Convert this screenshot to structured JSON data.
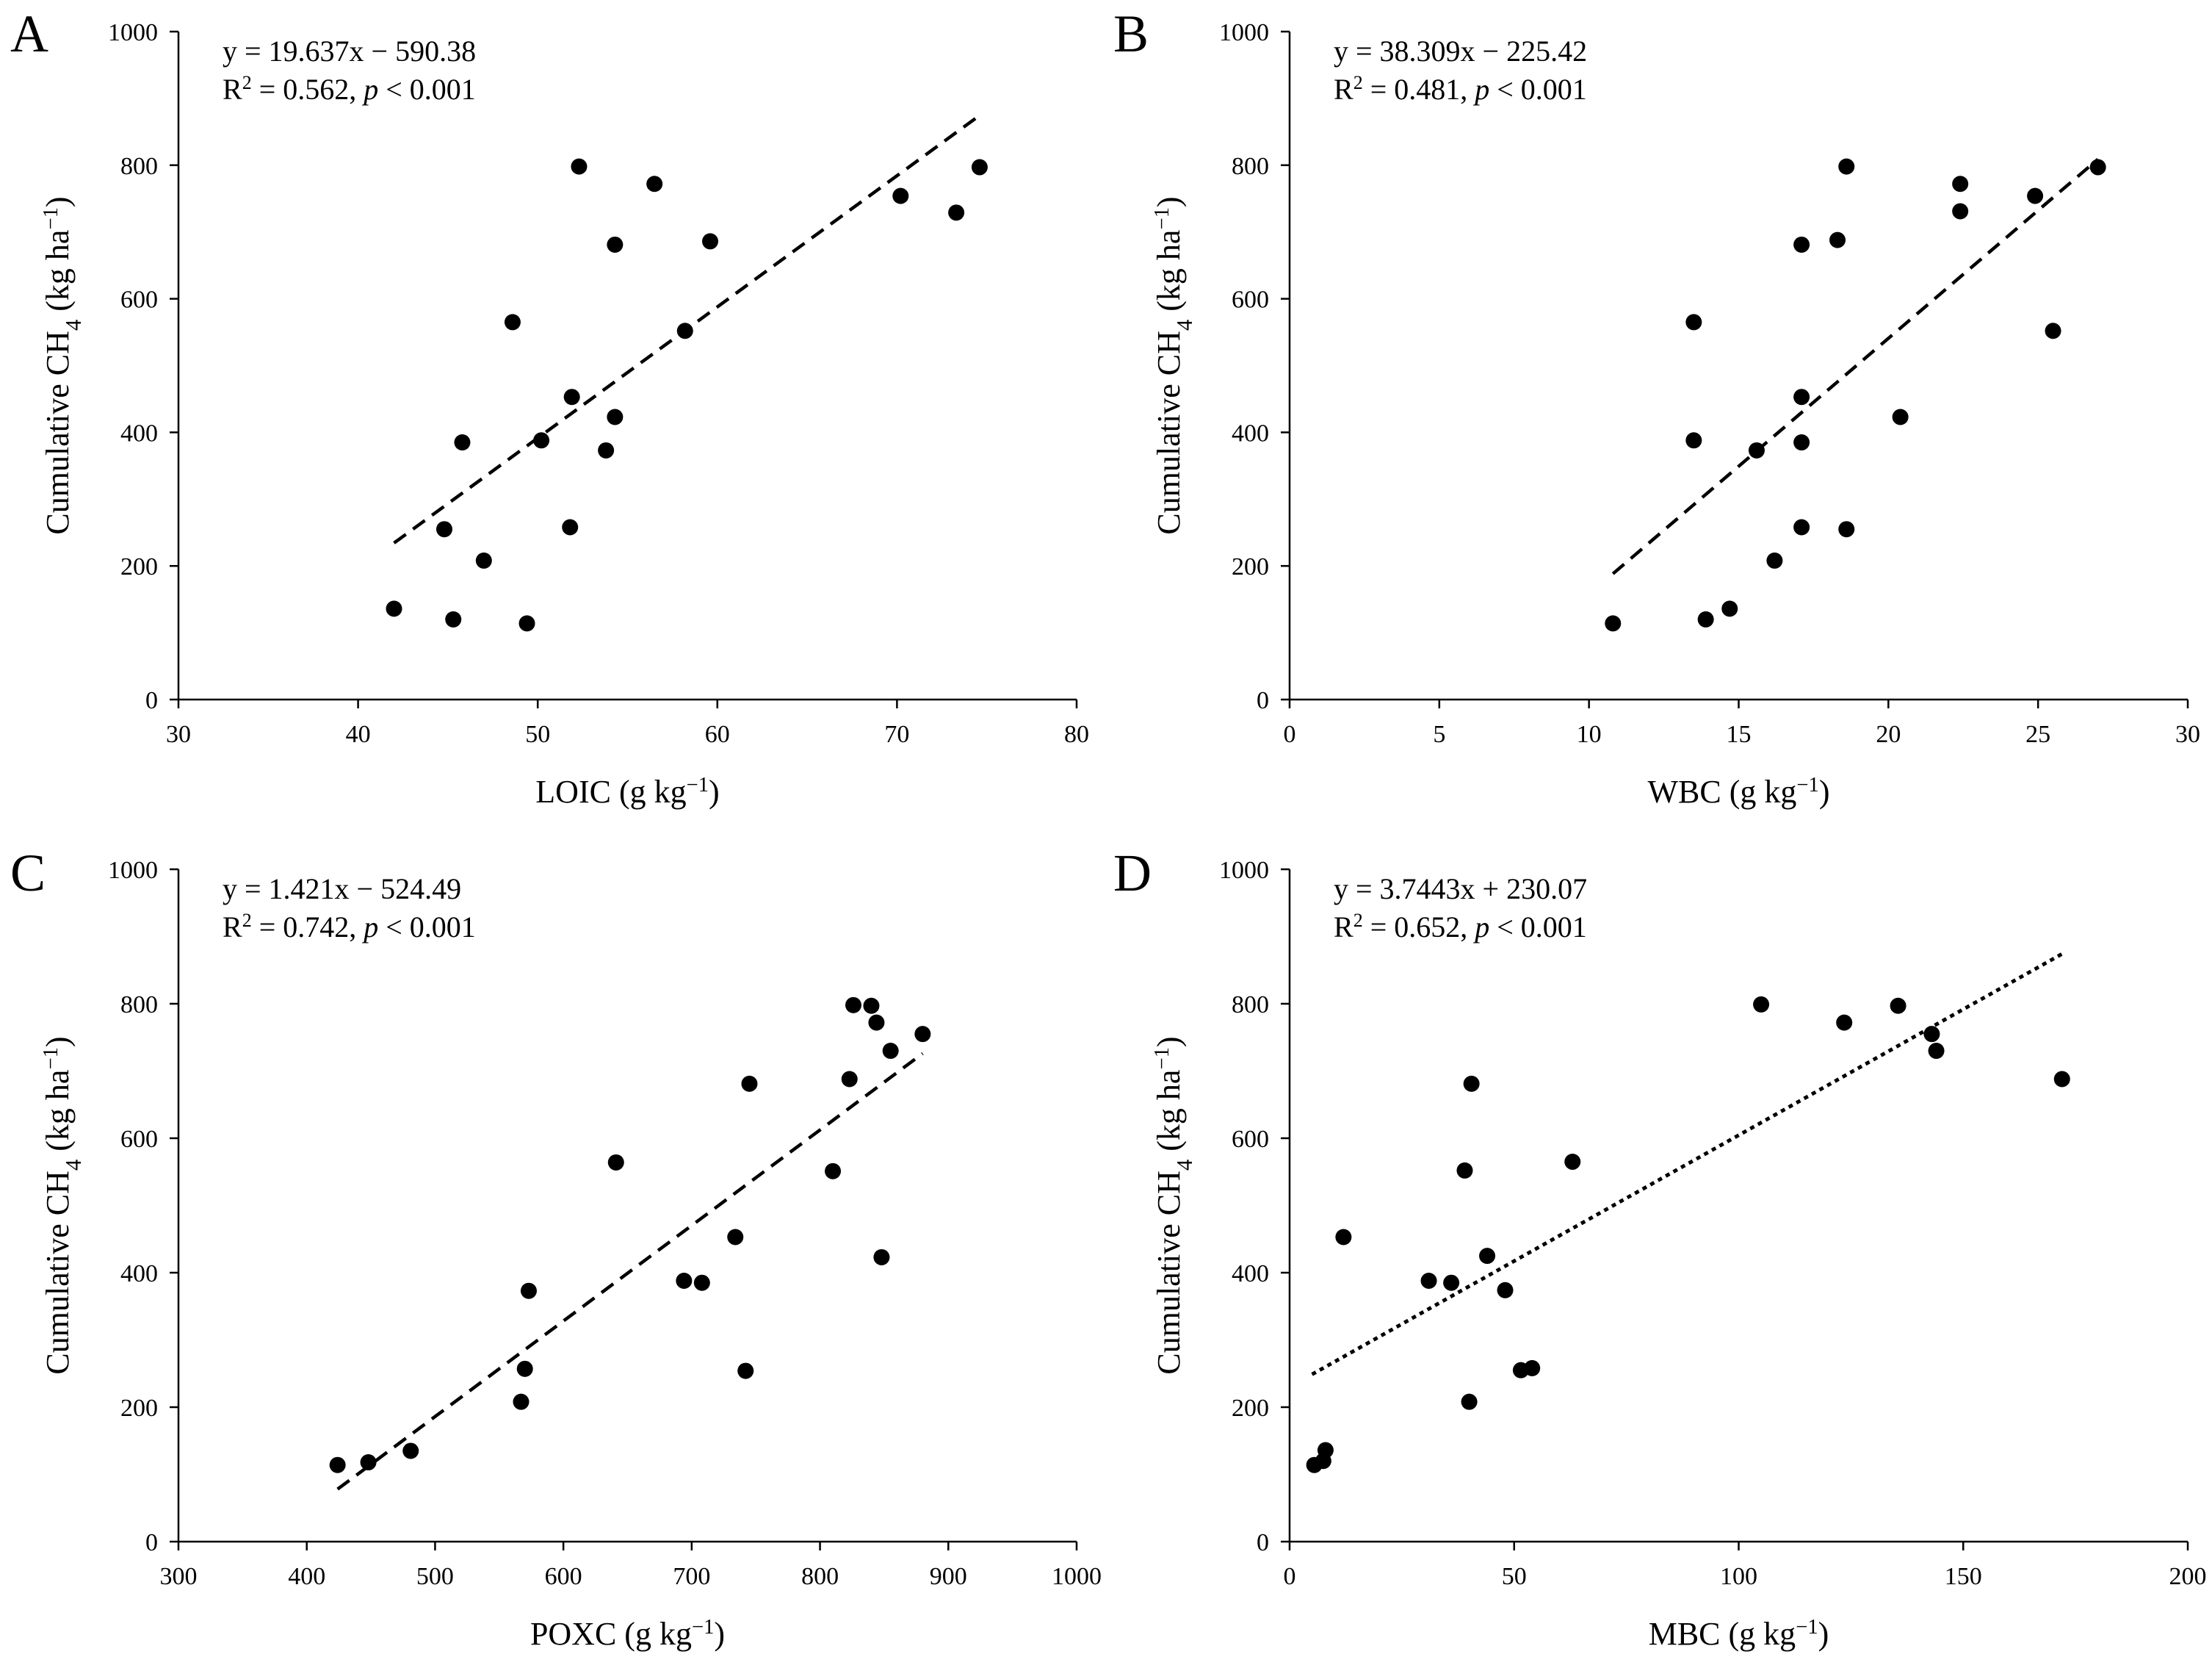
{
  "chart_data": [
    {
      "panel_label": "A",
      "type": "scatter",
      "xlabel": "LOIC (g kg−1)",
      "ylabel": "Cumulative CH4 (kg ha−1)",
      "equation": "y = 19.637x − 590.38",
      "r2_text": "R2 = 0.562,",
      "p_text": "p < 0.001",
      "xlim": [
        30,
        80
      ],
      "ylim": [
        0,
        1000
      ],
      "xticks": [
        30,
        40,
        50,
        60,
        70,
        80
      ],
      "yticks": [
        0,
        200,
        400,
        600,
        800,
        1000
      ],
      "trendline": {
        "slope": 19.637,
        "intercept": -590.38,
        "x_range": [
          42,
          74.7
        ],
        "style": "dashed"
      },
      "x": [
        42.0,
        44.8,
        45.3,
        45.8,
        47.0,
        48.6,
        49.4,
        50.2,
        51.8,
        51.9,
        52.3,
        53.8,
        54.3,
        54.3,
        56.5,
        58.2,
        59.6,
        70.2,
        73.3,
        74.6
      ],
      "y": [
        136,
        255,
        120,
        385,
        208,
        565,
        114,
        388,
        258,
        453,
        798,
        373,
        423,
        681,
        772,
        552,
        686,
        754,
        729,
        797
      ]
    },
    {
      "panel_label": "B",
      "type": "scatter",
      "xlabel": "WBC (g kg−1)",
      "ylabel": "Cumulative CH4 (kg ha−1)",
      "equation": "y = 38.309x − 225.42",
      "r2_text": "R2 = 0.481,",
      "p_text": "p < 0.001",
      "xlim": [
        0,
        30
      ],
      "ylim": [
        0,
        1000
      ],
      "xticks": [
        0,
        5,
        10,
        15,
        20,
        25,
        30
      ],
      "yticks": [
        0,
        200,
        400,
        600,
        800,
        1000
      ],
      "trendline": {
        "slope": 38.309,
        "intercept": -225.42,
        "x_range": [
          10.8,
          27.0
        ],
        "style": "dashed"
      },
      "x": [
        10.8,
        13.5,
        13.5,
        13.9,
        14.7,
        15.6,
        16.2,
        17.1,
        17.1,
        17.1,
        17.1,
        18.3,
        18.6,
        18.6,
        20.4,
        22.4,
        22.4,
        24.9,
        25.5,
        27.0
      ],
      "y": [
        114,
        565,
        388,
        120,
        136,
        373,
        208,
        681,
        453,
        385,
        258,
        688,
        798,
        255,
        423,
        772,
        731,
        754,
        552,
        797
      ]
    },
    {
      "panel_label": "C",
      "type": "scatter",
      "xlabel": "POXC (g kg−1)",
      "ylabel": "Cumulative CH4 (kg ha−1)",
      "equation": "y = 1.421x − 524.49",
      "r2_text": "R2 = 0.742,",
      "p_text": "p < 0.001",
      "xlim": [
        300,
        1000
      ],
      "ylim": [
        0,
        1000
      ],
      "xticks": [
        300,
        400,
        500,
        600,
        700,
        800,
        900,
        1000
      ],
      "yticks": [
        0,
        200,
        400,
        600,
        800,
        1000
      ],
      "trendline": {
        "slope": 1.421,
        "intercept": -524.49,
        "x_range": [
          424,
          880
        ],
        "style": "dashed"
      },
      "x": [
        424,
        448,
        481,
        567,
        570,
        573,
        641,
        694,
        708,
        734,
        742,
        745,
        810,
        823,
        826,
        840,
        844,
        848,
        855,
        880
      ],
      "y": [
        114,
        118,
        135,
        208,
        257,
        373,
        564,
        388,
        385,
        453,
        254,
        681,
        551,
        688,
        798,
        797,
        772,
        423,
        730,
        755
      ]
    },
    {
      "panel_label": "D",
      "type": "scatter",
      "xlabel": "MBC (g kg−1)",
      "ylabel": "Cumulative CH4 (kg ha−1)",
      "equation": "y = 3.7443x + 230.07",
      "r2_text": "R2 = 0.652,",
      "p_text": "p < 0.001",
      "xlim": [
        0,
        200
      ],
      "ylim": [
        0,
        1000
      ],
      "xticks": [
        0,
        50,
        100,
        150,
        200
      ],
      "yticks": [
        0,
        200,
        400,
        600,
        800,
        1000
      ],
      "trendline": {
        "slope": 3.7443,
        "intercept": 230.07,
        "x_range": [
          5,
          172
        ],
        "style": "dotted"
      },
      "x": [
        5.5,
        7.5,
        8.0,
        12.0,
        31.0,
        36.0,
        39.0,
        40.0,
        40.5,
        44.0,
        48.0,
        51.5,
        54.0,
        63.0,
        105.0,
        123.5,
        135.5,
        143.0,
        144.0,
        172.0
      ],
      "y": [
        114,
        120,
        136,
        453,
        388,
        385,
        552,
        208,
        681,
        425,
        374,
        255,
        258,
        565,
        799,
        772,
        797,
        755,
        730,
        688
      ]
    }
  ]
}
